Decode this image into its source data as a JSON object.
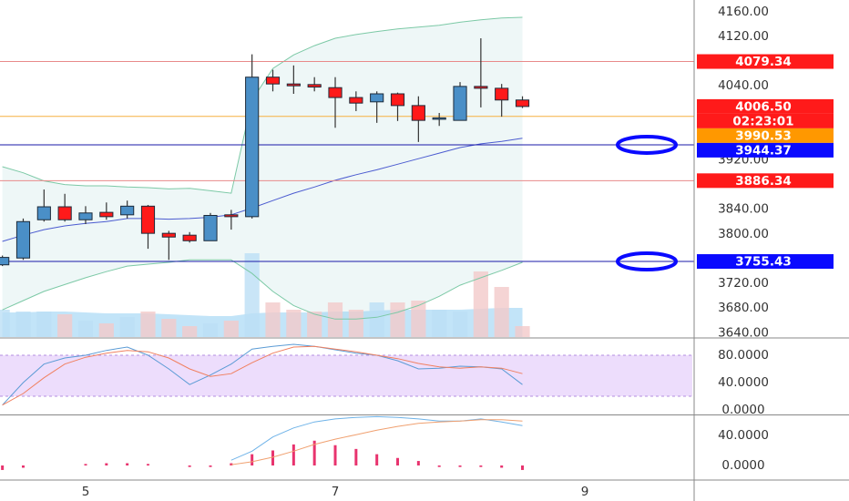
{
  "chart_data": {
    "type": "candlestick",
    "x": [
      4.3333,
      4.5,
      4.6667,
      4.8333,
      5,
      5.1667,
      5.3333,
      5.5,
      5.6667,
      5.8333,
      6,
      6.1667,
      6.3333,
      6.5,
      6.6667,
      6.8333,
      7,
      7.1667,
      7.3333,
      7.5,
      7.6667,
      7.8333,
      8,
      8.1667,
      8.3333,
      8.5
    ],
    "xlim": [
      4.314,
      9.861
    ],
    "xticks": [
      5,
      7,
      9
    ],
    "open": [
      3750,
      3761,
      3823,
      3844,
      3823,
      3835,
      3831,
      3845,
      3801,
      3798,
      3789,
      3831,
      3828,
      4054,
      4043,
      4042,
      4037,
      4021,
      4014,
      4027,
      4008,
      3987,
      3984,
      4039,
      4036,
      4017
    ],
    "high": [
      3765,
      3825,
      3872,
      3865,
      3845,
      3851,
      3854,
      3847,
      3805,
      3803,
      3834,
      3839,
      4091,
      4066,
      4073,
      4054,
      4054,
      4031,
      4031,
      4029,
      4023,
      3996,
      4046,
      4117,
      4043,
      4023
    ],
    "low": [
      3748,
      3758,
      3820,
      3820,
      3816,
      3823,
      3825,
      3776,
      3758,
      3786,
      3789,
      3807,
      3825,
      4031,
      4027,
      4031,
      3972,
      3999,
      3980,
      3983,
      3949,
      3975,
      3984,
      4005,
      3990,
      4004
    ],
    "close": [
      3762,
      3820,
      3844,
      3823,
      3834,
      3828,
      3845,
      3801,
      3795,
      3789,
      3830,
      3828,
      4054,
      4043,
      4040,
      4038,
      4021,
      4012,
      4027,
      4008,
      3984,
      3988,
      4039,
      4036,
      4017,
      4006.5
    ],
    "up_color": "#4a8fc7",
    "down_color": "#ff1a1a",
    "ylim": [
      3633,
      4179
    ],
    "yticks": [
      {
        "value": 4160,
        "label": "4160.00"
      },
      {
        "value": 4120,
        "label": "4120.00"
      },
      {
        "value": 4040,
        "label": "4040.00"
      },
      {
        "value": 3920,
        "label": "3920.00"
      },
      {
        "value": 3840,
        "label": "3840.00"
      },
      {
        "value": 3800,
        "label": "3800.00"
      },
      {
        "value": 3720,
        "label": "3720.00"
      },
      {
        "value": 3680,
        "label": "3680.00"
      },
      {
        "value": 3640,
        "label": "3640.00"
      }
    ],
    "bollinger": {
      "fill": "#eef7f7",
      "series": [
        {
          "color": "#7cc9a6",
          "values": [
            3909,
            3899,
            3886,
            3880,
            3878,
            3878,
            3876,
            3875,
            3873,
            3874,
            3870,
            3866,
            4017,
            4068,
            4090,
            4105,
            4117,
            4123,
            4128,
            4132,
            4135,
            4138,
            4143,
            4147,
            4150,
            4151
          ]
        },
        {
          "color": "#4b5bd0",
          "values": [
            3788,
            3798,
            3807,
            3813,
            3817,
            3820,
            3825,
            3825,
            3824,
            3825,
            3827,
            3831,
            3842,
            3854,
            3866,
            3876,
            3887,
            3896,
            3904,
            3913,
            3922,
            3931,
            3940,
            3946,
            3950,
            3955
          ]
        },
        {
          "color": "#7cc9a6",
          "values": [
            3677,
            3692,
            3707,
            3718,
            3729,
            3739,
            3748,
            3751,
            3754,
            3758,
            3758,
            3758,
            3736,
            3707,
            3684,
            3670,
            3662,
            3662,
            3665,
            3673,
            3684,
            3699,
            3717,
            3729,
            3741,
            3754
          ]
        }
      ]
    },
    "volume": {
      "ylim": [
        0,
        100
      ],
      "values": [
        30,
        28,
        28,
        25,
        18,
        15,
        22,
        28,
        20,
        12,
        15,
        18,
        92,
        38,
        30,
        28,
        38,
        30,
        38,
        38,
        40,
        30,
        28,
        72,
        55,
        12
      ],
      "up_color": "#bcdff5",
      "down_color": "#f3c9c9",
      "ma_color": "#8fcdf3",
      "ma": [
        27,
        27,
        28,
        28,
        27,
        26,
        26,
        26,
        25,
        24,
        23,
        23,
        26,
        27,
        27,
        27,
        28,
        28,
        29,
        30,
        30,
        30,
        30,
        31,
        32,
        32
      ]
    },
    "price_lines": [
      {
        "value": 4079.34,
        "color": "#ff1a1a",
        "line_color": "#e88a8a"
      },
      {
        "value": 3990.53,
        "color": "#ff9800",
        "line_color": "#f5b041"
      },
      {
        "value": 3944.37,
        "color": "#0a0aff",
        "line_color": "#1a1aa8",
        "circled": true
      },
      {
        "value": 3886.34,
        "color": "#ff1a1a",
        "line_color": "#e88a8a"
      },
      {
        "value": 3755.43,
        "color": "#0a0aff",
        "line_color": "#1a1aa8",
        "circled": true
      }
    ],
    "current_price": {
      "value": 4006.5,
      "label": "4006.50",
      "countdown": "02:23:01",
      "color": "#ff1a1a"
    },
    "stochastic": {
      "ylim": [
        -6.7,
        104
      ],
      "yticks": [
        {
          "value": 80,
          "label": "80.0000"
        },
        {
          "value": 40,
          "label": "40.0000"
        },
        {
          "value": 0,
          "label": "0.0000"
        }
      ],
      "band": [
        20,
        80
      ],
      "band_color": "#e8d4fb",
      "series": [
        {
          "color": "#5b9bd5",
          "values": [
            7,
            40,
            67,
            76,
            80,
            87,
            92,
            80,
            60,
            37,
            51,
            67,
            89,
            93,
            96,
            93,
            88,
            83,
            80,
            72,
            60,
            61,
            64,
            63,
            60,
            37
          ]
        },
        {
          "color": "#f08060",
          "values": [
            7,
            24,
            47,
            67,
            77,
            83,
            87,
            85,
            76,
            60,
            49,
            53,
            69,
            83,
            92,
            93,
            89,
            85,
            80,
            75,
            68,
            63,
            61,
            63,
            61,
            53
          ]
        }
      ]
    },
    "macd": {
      "ylim": [
        -19.4,
        66.7
      ],
      "yticks": [
        {
          "value": 40,
          "label": "40.0000"
        },
        {
          "value": 0,
          "label": "0.0000"
        }
      ],
      "histogram": [
        -6,
        -3,
        0,
        0,
        2,
        3,
        3,
        2,
        0,
        -2,
        -2,
        3,
        15,
        20,
        28,
        33,
        27,
        22,
        15,
        10,
        6,
        -2,
        -2,
        -2,
        -3,
        -6
      ],
      "histogram_color": "#e8336e",
      "series": [
        {
          "color": "#6fb3e8",
          "values": [
            null,
            null,
            null,
            null,
            null,
            null,
            null,
            null,
            null,
            null,
            null,
            7,
            19,
            38,
            50,
            58,
            62,
            64,
            65,
            64,
            62,
            59,
            59,
            62,
            58,
            53
          ]
        },
        {
          "color": "#f0a070",
          "values": [
            null,
            null,
            null,
            null,
            null,
            null,
            null,
            null,
            null,
            null,
            null,
            1,
            5,
            11,
            19,
            28,
            35,
            41,
            47,
            52,
            56,
            58,
            59,
            61,
            61,
            59
          ]
        }
      ]
    }
  }
}
